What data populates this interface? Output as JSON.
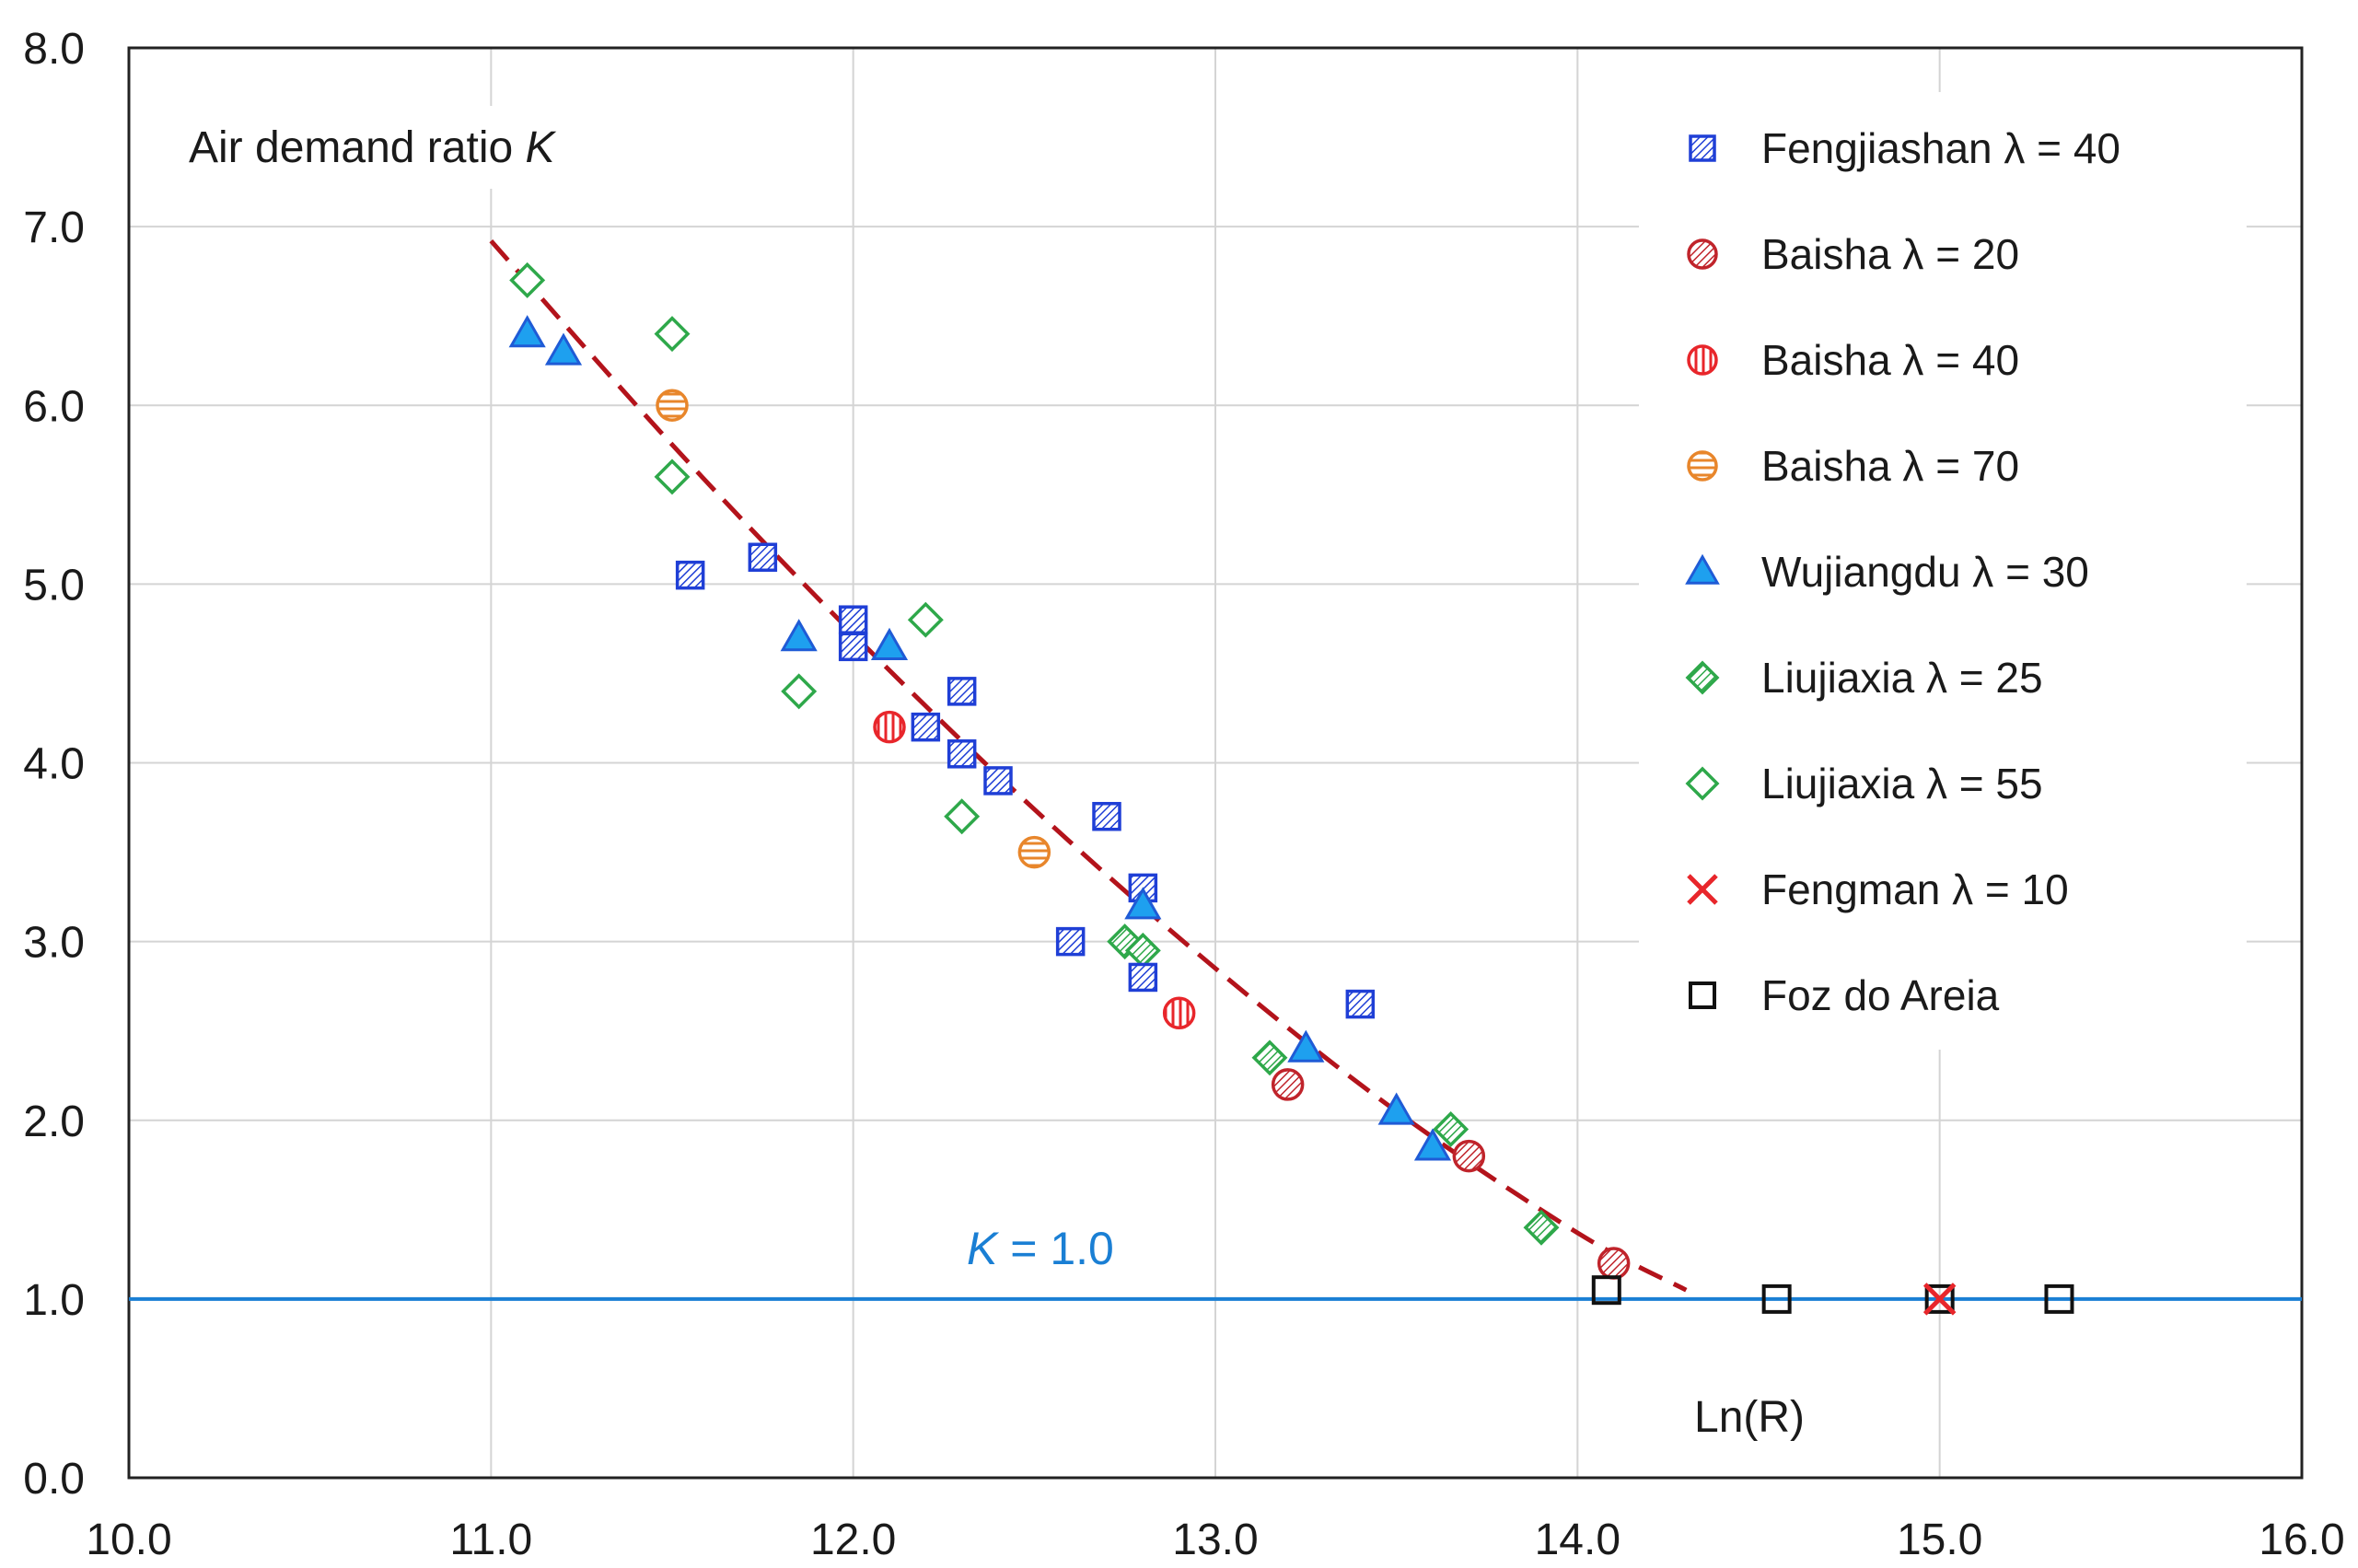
{
  "chart_data": {
    "type": "scatter",
    "title": "",
    "ylabel_text": "Air demand  ratio ",
    "ylabel_symbol": "K",
    "xlabel": "Ln(R)",
    "xlim": [
      10.0,
      16.0
    ],
    "ylim": [
      0.0,
      8.0
    ],
    "x_ticks": [
      10.0,
      11.0,
      12.0,
      13.0,
      14.0,
      15.0,
      16.0
    ],
    "x_tick_labels": [
      "10.0",
      "11.0",
      "12.0",
      "13.0",
      "14.0",
      "15.0",
      "16.0"
    ],
    "y_ticks": [
      0.0,
      1.0,
      2.0,
      3.0,
      4.0,
      5.0,
      6.0,
      7.0,
      8.0
    ],
    "y_tick_labels": [
      "0.0",
      "1.0",
      "2.0",
      "3.0",
      "4.0",
      "5.0",
      "6.0",
      "7.0",
      "8.0"
    ],
    "grid": true,
    "legend_position": "top-right",
    "reference_line": {
      "y": 1.0,
      "label_symbol": "K",
      "label_rest": " = 1.0",
      "color": "#1a7fd4"
    },
    "fit_curve": {
      "style": "dashed",
      "color": "#b3131b",
      "points": [
        [
          11.0,
          6.92
        ],
        [
          11.5,
          5.78
        ],
        [
          12.0,
          4.72
        ],
        [
          12.5,
          3.74
        ],
        [
          13.0,
          2.85
        ],
        [
          13.5,
          2.05
        ],
        [
          14.0,
          1.37
        ],
        [
          14.3,
          1.05
        ]
      ]
    },
    "series": [
      {
        "name": "Fengjiashan λ = 40",
        "marker": "hatched-square",
        "color": "#1f3fd6",
        "points": [
          [
            11.55,
            5.05
          ],
          [
            11.75,
            5.15
          ],
          [
            12.0,
            4.8
          ],
          [
            12.0,
            4.65
          ],
          [
            12.2,
            4.2
          ],
          [
            12.3,
            4.4
          ],
          [
            12.3,
            4.05
          ],
          [
            12.4,
            3.9
          ],
          [
            12.6,
            3.0
          ],
          [
            12.7,
            3.7
          ],
          [
            12.8,
            3.3
          ],
          [
            12.8,
            2.8
          ],
          [
            13.4,
            2.65
          ]
        ]
      },
      {
        "name": "Baisha λ = 20",
        "marker": "hatched-circle",
        "color": "#c0242b",
        "points": [
          [
            13.2,
            2.2
          ],
          [
            13.7,
            1.8
          ],
          [
            14.1,
            1.2
          ]
        ]
      },
      {
        "name": "Baisha λ = 40",
        "marker": "vbar-circle",
        "color": "#e8262b",
        "points": [
          [
            12.1,
            4.2
          ],
          [
            12.9,
            2.6
          ]
        ]
      },
      {
        "name": "Baisha λ = 70",
        "marker": "hbar-circle",
        "color": "#e8862b",
        "points": [
          [
            11.5,
            6.0
          ],
          [
            12.5,
            3.5
          ]
        ]
      },
      {
        "name": "Wujiangdu λ = 30",
        "marker": "filled-triangle",
        "color": "#1f5bd6",
        "points": [
          [
            11.1,
            6.4
          ],
          [
            11.2,
            6.3
          ],
          [
            11.85,
            4.7
          ],
          [
            12.1,
            4.65
          ],
          [
            12.8,
            3.2
          ],
          [
            13.25,
            2.4
          ],
          [
            13.5,
            2.05
          ],
          [
            13.6,
            1.85
          ]
        ]
      },
      {
        "name": "Liujiaxia λ = 25",
        "marker": "hatched-diamond",
        "color": "#2ea84a",
        "points": [
          [
            12.75,
            3.0
          ],
          [
            12.8,
            2.95
          ],
          [
            13.15,
            2.35
          ],
          [
            13.65,
            1.95
          ],
          [
            13.9,
            1.4
          ]
        ]
      },
      {
        "name": "Liujiaxia λ = 55",
        "marker": "open-diamond",
        "color": "#2ea84a",
        "points": [
          [
            11.1,
            6.7
          ],
          [
            11.5,
            6.4
          ],
          [
            11.5,
            5.6
          ],
          [
            11.85,
            4.4
          ],
          [
            12.2,
            4.8
          ],
          [
            12.3,
            3.7
          ]
        ]
      },
      {
        "name": "Fengman λ = 10",
        "marker": "cross",
        "color": "#e8262b",
        "points": [
          [
            15.0,
            1.0
          ]
        ]
      },
      {
        "name": "Foz do Areia",
        "marker": "open-square",
        "color": "#111111",
        "points": [
          [
            14.08,
            1.05
          ],
          [
            14.55,
            1.0
          ],
          [
            15.0,
            1.0
          ],
          [
            15.33,
            1.0
          ]
        ]
      }
    ]
  }
}
